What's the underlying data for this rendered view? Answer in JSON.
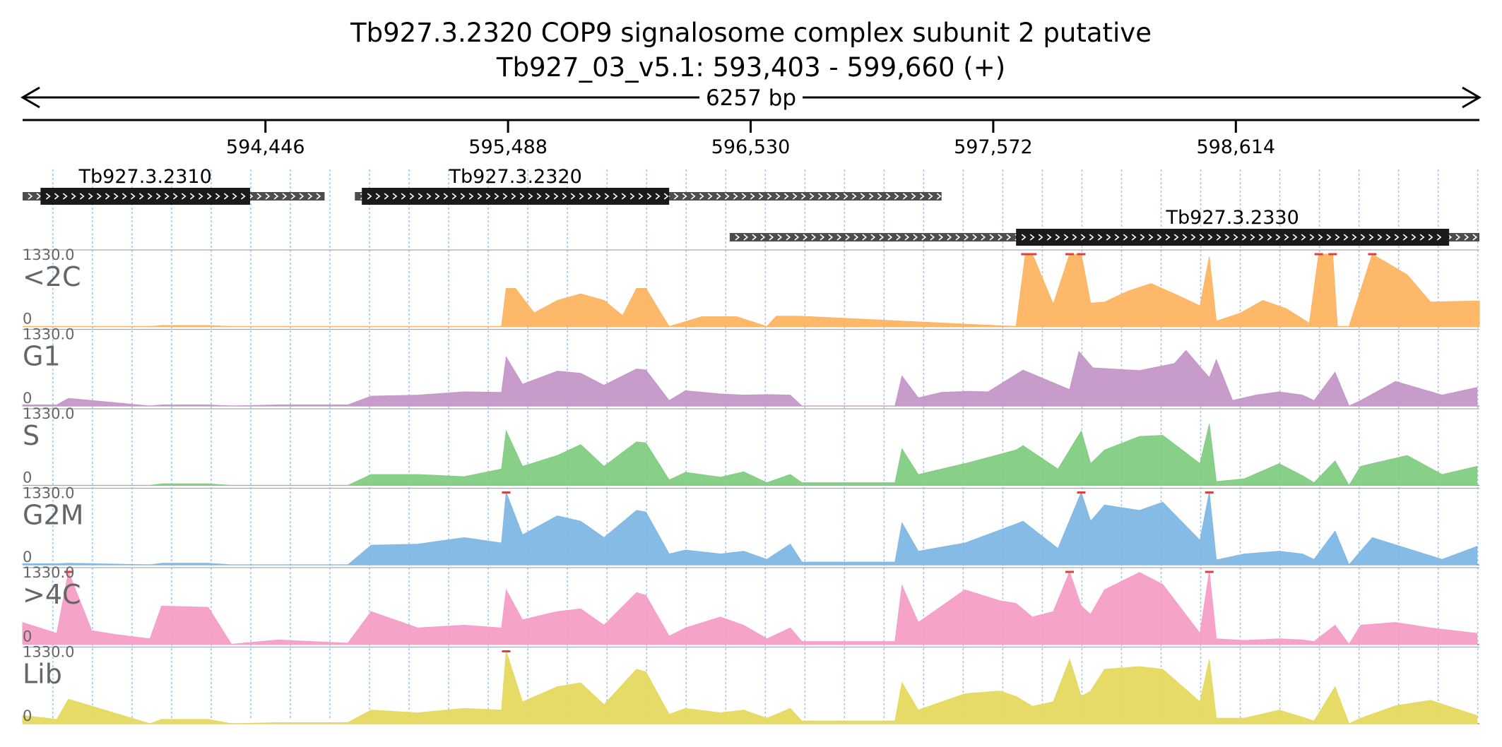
{
  "chart_data": {
    "type": "area",
    "title": "Tb927.3.2320  COP9 signalosome complex subunit 2  putative",
    "subtitle": "Tb927_03_v5.1: 593,403 - 599,660 (+)",
    "span_label": "6257 bp",
    "xlim": [
      593403,
      599660
    ],
    "x_ticks": [
      594446,
      595488,
      596530,
      597572,
      598614
    ],
    "x_tick_labels": [
      "594,446",
      "595,488",
      "596,530",
      "597,572",
      "598,614"
    ],
    "grid": true,
    "genes": [
      {
        "name": "Tb927.3.2310",
        "utr_start": 593403,
        "cds_start": 593480,
        "cds_end": 594380,
        "utr_end": 594700,
        "row": 1
      },
      {
        "name": "Tb927.3.2320",
        "utr_start": 594830,
        "cds_start": 594860,
        "cds_end": 596180,
        "utr_end": 597350,
        "row": 1
      },
      {
        "name": "Tb927.3.2330",
        "utr_start": 596440,
        "cds_start": 597670,
        "cds_end": 599530,
        "utr_end": 599660,
        "row": 2
      }
    ],
    "series_meta": {
      "ymin": 0,
      "ymax": 1330.0,
      "ymax_label": "1330.0",
      "ymin_label": "0"
    },
    "series": [
      {
        "name": "<2C",
        "color": "#fdb462",
        "x": [
          593403,
          593950,
          594000,
          594200,
          594300,
          595460,
          595480,
          595520,
          595600,
          595700,
          595800,
          595900,
          595980,
          596040,
          596080,
          596180,
          596320,
          596470,
          596600,
          596640,
          596740,
          597670,
          597710,
          597740,
          597830,
          597900,
          597950,
          597990,
          598050,
          598150,
          598250,
          598350,
          598460,
          598500,
          598530,
          598630,
          598730,
          598830,
          598930,
          598970,
          599030,
          599050,
          599100,
          599200,
          599350,
          599450,
          599660
        ],
        "values": [
          0,
          0,
          20,
          20,
          0,
          0,
          700,
          700,
          250,
          480,
          600,
          480,
          200,
          700,
          700,
          0,
          180,
          180,
          0,
          190,
          190,
          0,
          1330,
          1330,
          410,
          1330,
          1330,
          430,
          450,
          650,
          790,
          600,
          380,
          1280,
          100,
          240,
          480,
          330,
          60,
          1330,
          1330,
          0,
          0,
          1330,
          950,
          450,
          470
        ]
      },
      {
        "name": "G1",
        "color": "#c497c8",
        "x": [
          593403,
          593550,
          593600,
          593950,
          594000,
          594200,
          594300,
          594500,
          594800,
          594900,
          595100,
          595300,
          595460,
          595480,
          595550,
          595700,
          595800,
          595900,
          596040,
          596080,
          596180,
          596250,
          596400,
          596500,
          596600,
          596700,
          596750,
          597150,
          597180,
          597250,
          597350,
          597470,
          597550,
          597700,
          597900,
          597940,
          598000,
          598200,
          598350,
          598400,
          598500,
          598530,
          598600,
          598700,
          598800,
          598900,
          598950,
          599040,
          599100,
          599150,
          599300,
          599500,
          599650
        ],
        "values": [
          20,
          20,
          140,
          0,
          20,
          20,
          0,
          20,
          20,
          180,
          200,
          260,
          250,
          900,
          400,
          640,
          600,
          380,
          680,
          660,
          100,
          280,
          220,
          200,
          210,
          200,
          0,
          0,
          550,
          150,
          250,
          270,
          260,
          660,
          300,
          1000,
          700,
          650,
          780,
          1020,
          520,
          850,
          100,
          200,
          260,
          200,
          100,
          620,
          0,
          100,
          450,
          200,
          340
        ]
      },
      {
        "name": "S",
        "color": "#82cc82",
        "x": [
          593403,
          593950,
          594000,
          594200,
          594300,
          594800,
          594900,
          595100,
          595300,
          595460,
          595480,
          595550,
          595700,
          595800,
          595900,
          596040,
          596080,
          596180,
          596250,
          596400,
          596500,
          596600,
          596700,
          596750,
          597150,
          597180,
          597250,
          597450,
          597670,
          597700,
          597850,
          597950,
          597990,
          598050,
          598200,
          598300,
          598460,
          598500,
          598530,
          598650,
          598800,
          598900,
          598950,
          599040,
          599100,
          599150,
          599200,
          599350,
          599500,
          599650
        ],
        "values": [
          0,
          0,
          30,
          30,
          0,
          0,
          200,
          200,
          160,
          300,
          1000,
          350,
          550,
          750,
          350,
          800,
          780,
          100,
          240,
          150,
          250,
          50,
          200,
          50,
          50,
          670,
          200,
          400,
          650,
          730,
          300,
          1000,
          400,
          650,
          900,
          920,
          400,
          1130,
          70,
          120,
          400,
          180,
          50,
          450,
          0,
          350,
          400,
          550,
          200,
          350
        ]
      },
      {
        "name": "G2M",
        "color": "#7fb7e4",
        "x": [
          593403,
          593550,
          593600,
          593950,
          594000,
          594200,
          594300,
          594800,
          594900,
          595100,
          595300,
          595460,
          595480,
          595550,
          595700,
          595800,
          595900,
          596040,
          596080,
          596180,
          596250,
          596400,
          596500,
          596600,
          596700,
          596750,
          597150,
          597180,
          597250,
          597450,
          597670,
          597700,
          597850,
          597950,
          597990,
          598050,
          598200,
          598300,
          598460,
          598500,
          598530,
          598650,
          598800,
          598900,
          598950,
          599040,
          599100,
          599150,
          599200,
          599350,
          599500,
          599650
        ],
        "values": [
          20,
          20,
          30,
          0,
          30,
          30,
          0,
          0,
          360,
          380,
          500,
          400,
          1330,
          550,
          900,
          800,
          500,
          1000,
          970,
          200,
          270,
          200,
          250,
          100,
          380,
          50,
          50,
          770,
          250,
          400,
          750,
          800,
          300,
          1330,
          800,
          1100,
          1000,
          1150,
          450,
          1330,
          90,
          200,
          250,
          200,
          100,
          620,
          0,
          250,
          500,
          300,
          100,
          340
        ]
      },
      {
        "name": ">4C",
        "color": "#f59ec6",
        "x": [
          593403,
          593550,
          593600,
          593700,
          593800,
          593950,
          594000,
          594200,
          594300,
          594500,
          594800,
          594900,
          595100,
          595300,
          595460,
          595480,
          595550,
          595700,
          595800,
          595900,
          596040,
          596080,
          596180,
          596250,
          596400,
          596500,
          596600,
          596700,
          596750,
          597150,
          597180,
          597250,
          597450,
          597600,
          597670,
          597740,
          597830,
          597900,
          597950,
          597990,
          598050,
          598200,
          598300,
          598460,
          598500,
          598530,
          598650,
          598800,
          598900,
          598950,
          599040,
          599100,
          599150,
          599300,
          599450,
          599650
        ],
        "values": [
          400,
          200,
          1330,
          250,
          180,
          100,
          700,
          680,
          0,
          80,
          20,
          600,
          300,
          350,
          300,
          1000,
          450,
          600,
          650,
          350,
          950,
          900,
          150,
          300,
          500,
          350,
          100,
          300,
          50,
          50,
          1080,
          400,
          1000,
          800,
          750,
          500,
          600,
          1330,
          700,
          550,
          1000,
          1320,
          1100,
          200,
          1330,
          100,
          70,
          100,
          80,
          50,
          350,
          0,
          350,
          400,
          300,
          200
        ]
      },
      {
        "name": "Lib",
        "color": "#e5d95e",
        "x": [
          593403,
          593550,
          593600,
          593950,
          594000,
          594200,
          594300,
          594500,
          594800,
          594900,
          595100,
          595300,
          595460,
          595480,
          595550,
          595700,
          595800,
          595900,
          596040,
          596080,
          596180,
          596250,
          596400,
          596500,
          596600,
          596700,
          596750,
          597150,
          597180,
          597250,
          597450,
          597600,
          597670,
          597740,
          597830,
          597900,
          597950,
          597990,
          598050,
          598200,
          598300,
          598460,
          598500,
          598530,
          598650,
          598800,
          598900,
          598950,
          599040,
          599100,
          599150,
          599300,
          599450,
          599650
        ],
        "values": [
          150,
          80,
          450,
          0,
          80,
          80,
          0,
          20,
          20,
          250,
          200,
          280,
          250,
          1330,
          400,
          680,
          750,
          350,
          1000,
          950,
          170,
          280,
          200,
          250,
          100,
          280,
          50,
          50,
          750,
          250,
          550,
          600,
          500,
          320,
          400,
          1180,
          500,
          600,
          1000,
          1050,
          1000,
          400,
          1180,
          100,
          100,
          250,
          120,
          50,
          680,
          0,
          100,
          330,
          430,
          150
        ]
      }
    ]
  }
}
